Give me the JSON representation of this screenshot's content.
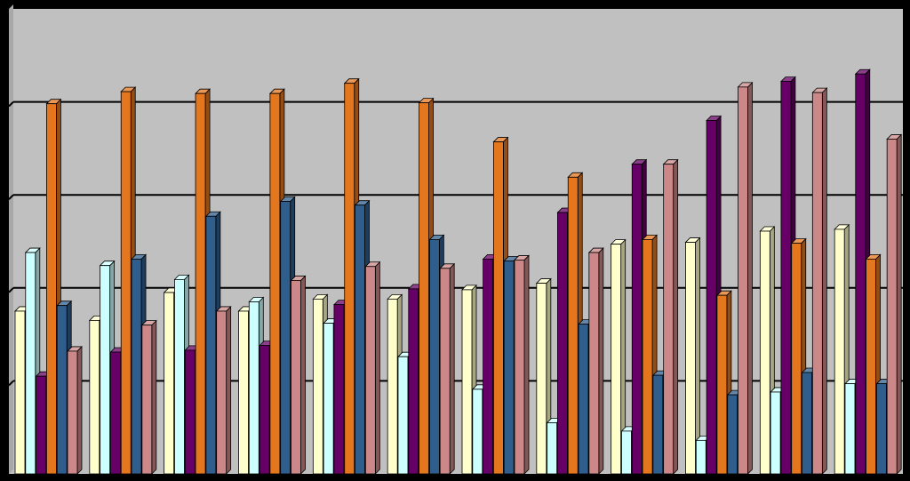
{
  "chart_data": {
    "type": "bar",
    "categories": [
      "",
      "",
      "",
      "",
      "",
      "",
      "",
      "",
      "",
      "",
      "",
      ""
    ],
    "ylim": [
      0,
      5
    ],
    "grid": true,
    "legend": "none",
    "series": [
      {
        "color": "#FFFFCC",
        "values": [
          1.75,
          1.65,
          1.95,
          1.75,
          1.88,
          1.88,
          1.98,
          2.05,
          2.47,
          2.49,
          2.61,
          2.63
        ]
      },
      {
        "color": "#CCFFFF",
        "values": [
          2.38,
          2.24,
          2.09,
          1.85,
          1.62,
          1.26,
          0.91,
          0.55,
          0.46,
          0.36,
          0.88,
          0.97
        ]
      },
      {
        "color": "#660066",
        "values": [
          1.05,
          1.31,
          1.33,
          1.38,
          1.82,
          1.99,
          2.31,
          2.81,
          3.33,
          3.8,
          4.22,
          4.3
        ]
      },
      {
        "color": "#E4761E",
        "values": [
          3.98,
          4.11,
          4.09,
          4.09,
          4.2,
          3.99,
          3.57,
          3.19,
          2.52,
          1.92,
          2.48,
          2.31
        ]
      },
      {
        "color": "#2F5D8C",
        "values": [
          1.81,
          2.31,
          2.77,
          2.93,
          2.89,
          2.52,
          2.29,
          1.61,
          1.06,
          0.85,
          1.09,
          0.97
        ]
      },
      {
        "color": "#CC8888",
        "values": [
          1.32,
          1.6,
          1.75,
          2.08,
          2.23,
          2.21,
          2.3,
          2.38,
          3.33,
          4.16,
          4.1,
          3.6
        ]
      }
    ]
  }
}
